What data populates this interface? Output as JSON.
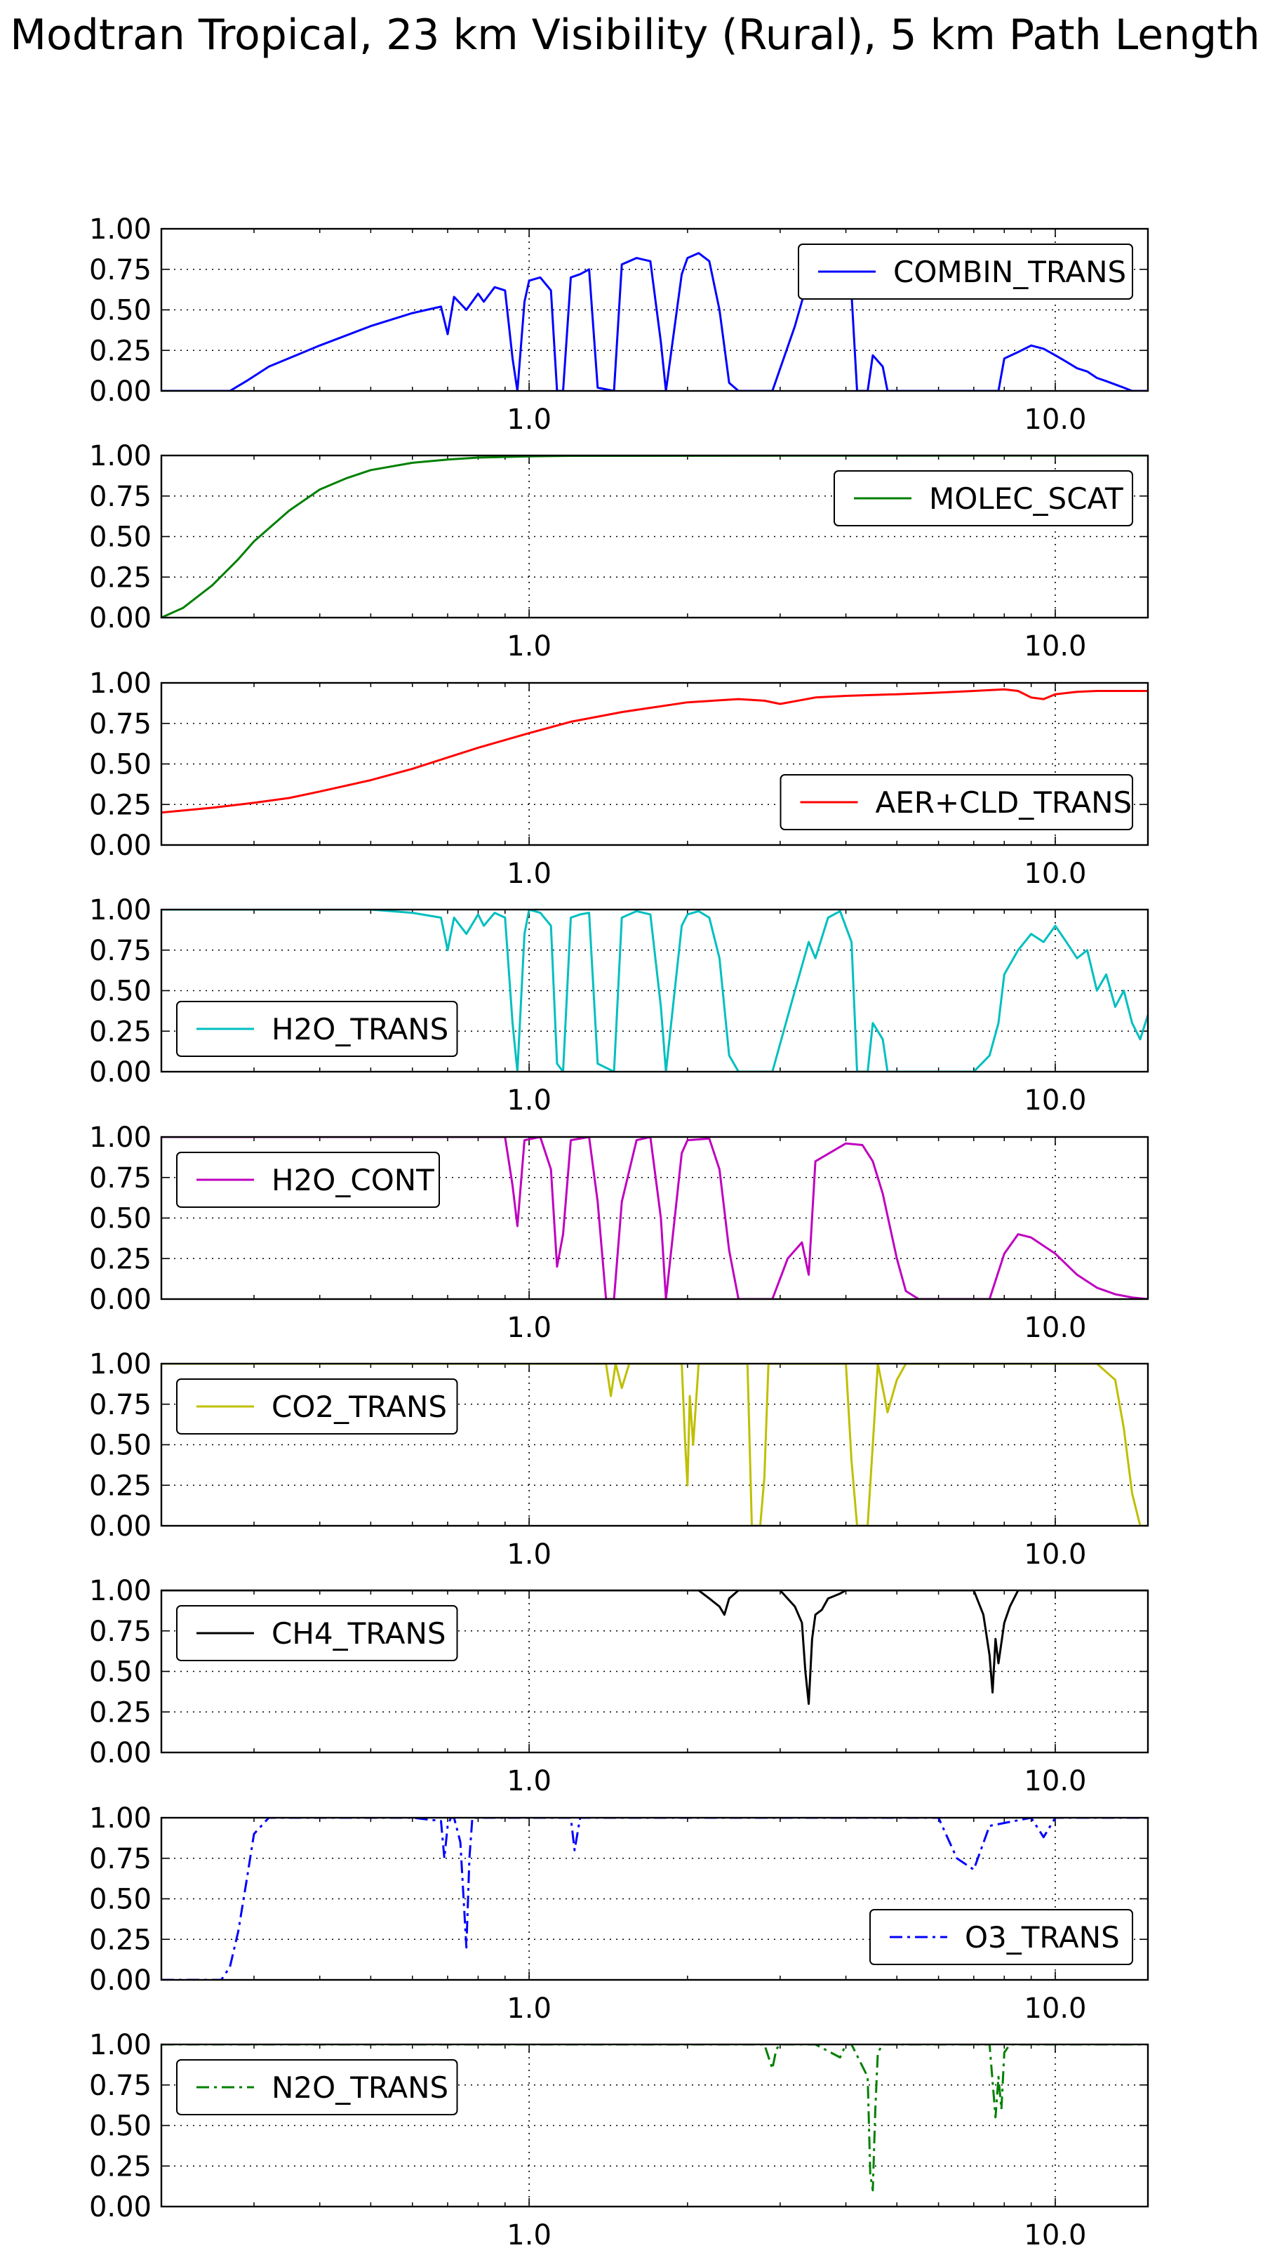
{
  "figure": {
    "title": "Modtran Tropical, 23 km Visibility (Rural), 5 km Path Length"
  },
  "chart_data": [
    {
      "type": "line",
      "xscale": "log",
      "xlim": [
        0.2,
        15.0
      ],
      "ylim": [
        0,
        1
      ],
      "grid": true,
      "xticks": [
        1.0,
        10.0
      ],
      "xtick_labels": [
        "1.0",
        "10.0"
      ],
      "yticks": [
        0,
        0.25,
        0.5,
        0.75,
        1.0
      ],
      "ytick_labels": [
        "0.00",
        "0.25",
        "0.50",
        "0.75",
        "1.00"
      ],
      "legend_loc": "upper right",
      "series": [
        {
          "name": "COMBIN_TRANS",
          "color": "#0000ff",
          "linestyle": "solid",
          "x": [
            0.2,
            0.27,
            0.29,
            0.32,
            0.4,
            0.5,
            0.6,
            0.68,
            0.7,
            0.72,
            0.76,
            0.8,
            0.82,
            0.86,
            0.9,
            0.93,
            0.95,
            0.98,
            1.0,
            1.05,
            1.1,
            1.13,
            1.16,
            1.2,
            1.25,
            1.3,
            1.35,
            1.45,
            1.5,
            1.6,
            1.7,
            1.78,
            1.82,
            1.95,
            2.0,
            2.1,
            2.2,
            2.3,
            2.4,
            2.5,
            2.6,
            2.9,
            3.2,
            3.4,
            3.5,
            3.7,
            3.9,
            4.1,
            4.2,
            4.4,
            4.5,
            4.7,
            4.8,
            5.0,
            5.2,
            5.5,
            7.8,
            8.0,
            8.5,
            9.0,
            9.5,
            10.0,
            10.5,
            11.0,
            11.5,
            12.0,
            12.5,
            13.0,
            13.5,
            14.0,
            15.0
          ],
          "y": [
            0,
            0,
            0.06,
            0.15,
            0.28,
            0.4,
            0.48,
            0.52,
            0.35,
            0.58,
            0.5,
            0.6,
            0.55,
            0.64,
            0.62,
            0.2,
            0,
            0.55,
            0.68,
            0.7,
            0.62,
            0,
            0,
            0.7,
            0.72,
            0.75,
            0.02,
            0,
            0.78,
            0.82,
            0.8,
            0.3,
            0,
            0.72,
            0.82,
            0.85,
            0.8,
            0.5,
            0.05,
            0,
            0,
            0,
            0.4,
            0.7,
            0.6,
            0.78,
            0.82,
            0.6,
            0,
            0,
            0.22,
            0.15,
            0,
            0,
            0,
            0,
            0,
            0.2,
            0.24,
            0.28,
            0.26,
            0.22,
            0.18,
            0.14,
            0.12,
            0.08,
            0.06,
            0.04,
            0.02,
            0,
            0
          ]
        }
      ]
    },
    {
      "type": "line",
      "xscale": "log",
      "xlim": [
        0.2,
        15.0
      ],
      "ylim": [
        0,
        1
      ],
      "grid": true,
      "xticks": [
        1.0,
        10.0
      ],
      "xtick_labels": [
        "1.0",
        "10.0"
      ],
      "yticks": [
        0,
        0.25,
        0.5,
        0.75,
        1.0
      ],
      "ytick_labels": [
        "0.00",
        "0.25",
        "0.50",
        "0.75",
        "1.00"
      ],
      "legend_loc": "upper right",
      "series": [
        {
          "name": "MOLEC_SCAT",
          "color": "#008000",
          "linestyle": "solid",
          "x": [
            0.2,
            0.22,
            0.25,
            0.28,
            0.3,
            0.35,
            0.4,
            0.45,
            0.5,
            0.6,
            0.7,
            0.8,
            1.0,
            1.2,
            15.0
          ],
          "y": [
            0.0,
            0.06,
            0.2,
            0.36,
            0.47,
            0.66,
            0.79,
            0.86,
            0.91,
            0.955,
            0.975,
            0.987,
            0.995,
            0.998,
            1.0
          ]
        }
      ]
    },
    {
      "type": "line",
      "xscale": "log",
      "xlim": [
        0.2,
        15.0
      ],
      "ylim": [
        0,
        1
      ],
      "grid": true,
      "xticks": [
        1.0,
        10.0
      ],
      "xtick_labels": [
        "1.0",
        "10.0"
      ],
      "yticks": [
        0,
        0.25,
        0.5,
        0.75,
        1.0
      ],
      "ytick_labels": [
        "0.00",
        "0.25",
        "0.50",
        "0.75",
        "1.00"
      ],
      "legend_loc": "lower right",
      "series": [
        {
          "name": "AER+CLD_TRANS",
          "color": "#ff0000",
          "linestyle": "solid",
          "x": [
            0.2,
            0.25,
            0.3,
            0.35,
            0.4,
            0.5,
            0.6,
            0.7,
            0.8,
            1.0,
            1.2,
            1.5,
            2.0,
            2.5,
            2.8,
            3.0,
            3.5,
            4.0,
            5.0,
            6.0,
            7.0,
            8.0,
            8.5,
            9.0,
            9.5,
            10.0,
            11.0,
            12.0,
            15.0
          ],
          "y": [
            0.2,
            0.23,
            0.26,
            0.29,
            0.33,
            0.4,
            0.47,
            0.54,
            0.6,
            0.69,
            0.76,
            0.82,
            0.88,
            0.9,
            0.89,
            0.87,
            0.91,
            0.92,
            0.93,
            0.94,
            0.95,
            0.96,
            0.95,
            0.91,
            0.9,
            0.93,
            0.945,
            0.95,
            0.95
          ]
        }
      ]
    },
    {
      "type": "line",
      "xscale": "log",
      "xlim": [
        0.2,
        15.0
      ],
      "ylim": [
        0,
        1
      ],
      "grid": true,
      "xticks": [
        1.0,
        10.0
      ],
      "xtick_labels": [
        "1.0",
        "10.0"
      ],
      "yticks": [
        0,
        0.25,
        0.5,
        0.75,
        1.0
      ],
      "ytick_labels": [
        "0.00",
        "0.25",
        "0.50",
        "0.75",
        "1.00"
      ],
      "legend_loc": "lower left",
      "series": [
        {
          "name": "H2O_TRANS",
          "color": "#00bfbf",
          "linestyle": "solid",
          "x": [
            0.2,
            0.5,
            0.6,
            0.68,
            0.7,
            0.72,
            0.76,
            0.8,
            0.82,
            0.86,
            0.9,
            0.93,
            0.95,
            0.98,
            1.0,
            1.05,
            1.1,
            1.13,
            1.16,
            1.2,
            1.25,
            1.3,
            1.35,
            1.45,
            1.5,
            1.6,
            1.7,
            1.78,
            1.82,
            1.95,
            2.0,
            2.1,
            2.2,
            2.3,
            2.4,
            2.5,
            2.6,
            2.9,
            3.2,
            3.4,
            3.5,
            3.7,
            3.9,
            4.1,
            4.2,
            4.4,
            4.5,
            4.7,
            4.8,
            5.0,
            5.2,
            5.5,
            6.0,
            7.0,
            7.5,
            7.8,
            8.0,
            8.5,
            9.0,
            9.5,
            10.0,
            10.5,
            11.0,
            11.5,
            12.0,
            12.5,
            13.0,
            13.5,
            14.0,
            14.5,
            15.0
          ],
          "y": [
            1.0,
            1.0,
            0.98,
            0.95,
            0.75,
            0.95,
            0.85,
            0.97,
            0.9,
            0.98,
            0.95,
            0.3,
            0.0,
            0.85,
            1.0,
            0.98,
            0.9,
            0.05,
            0.0,
            0.95,
            0.97,
            0.98,
            0.05,
            0.0,
            0.95,
            0.99,
            0.97,
            0.4,
            0.0,
            0.9,
            0.97,
            0.99,
            0.95,
            0.7,
            0.1,
            0.0,
            0.0,
            0.0,
            0.5,
            0.8,
            0.7,
            0.95,
            0.99,
            0.8,
            0.0,
            0.0,
            0.3,
            0.2,
            0.0,
            0.0,
            0.0,
            0.0,
            0.0,
            0.0,
            0.1,
            0.3,
            0.6,
            0.75,
            0.85,
            0.8,
            0.9,
            0.8,
            0.7,
            0.75,
            0.5,
            0.6,
            0.4,
            0.5,
            0.3,
            0.2,
            0.35
          ]
        }
      ]
    },
    {
      "type": "line",
      "xscale": "log",
      "xlim": [
        0.2,
        15.0
      ],
      "ylim": [
        0,
        1
      ],
      "grid": true,
      "xticks": [
        1.0,
        10.0
      ],
      "xtick_labels": [
        "1.0",
        "10.0"
      ],
      "yticks": [
        0,
        0.25,
        0.5,
        0.75,
        1.0
      ],
      "ytick_labels": [
        "0.00",
        "0.25",
        "0.50",
        "0.75",
        "1.00"
      ],
      "legend_loc": "upper left",
      "series": [
        {
          "name": "H2O_CONT",
          "color": "#bf00bf",
          "linestyle": "solid",
          "x": [
            0.2,
            0.9,
            0.93,
            0.95,
            0.98,
            1.05,
            1.1,
            1.13,
            1.16,
            1.2,
            1.3,
            1.35,
            1.4,
            1.45,
            1.5,
            1.6,
            1.7,
            1.78,
            1.82,
            1.95,
            2.0,
            2.2,
            2.3,
            2.4,
            2.5,
            2.6,
            2.9,
            3.1,
            3.3,
            3.4,
            3.5,
            4.0,
            4.3,
            4.5,
            4.7,
            5.0,
            5.2,
            5.5,
            7.5,
            8.0,
            8.5,
            9.0,
            10.0,
            11.0,
            12.0,
            13.0,
            14.0,
            15.0
          ],
          "y": [
            1.0,
            1.0,
            0.7,
            0.45,
            0.98,
            1.0,
            0.8,
            0.2,
            0.4,
            0.98,
            1.0,
            0.6,
            0.0,
            0.0,
            0.6,
            0.98,
            1.0,
            0.5,
            0.0,
            0.9,
            0.98,
            0.99,
            0.8,
            0.3,
            0.0,
            0.0,
            0.0,
            0.25,
            0.35,
            0.15,
            0.85,
            0.96,
            0.95,
            0.85,
            0.65,
            0.25,
            0.05,
            0.0,
            0.0,
            0.28,
            0.4,
            0.38,
            0.28,
            0.15,
            0.07,
            0.03,
            0.01,
            0.0
          ]
        }
      ]
    },
    {
      "type": "line",
      "xscale": "log",
      "xlim": [
        0.2,
        15.0
      ],
      "ylim": [
        0,
        1
      ],
      "grid": true,
      "xticks": [
        1.0,
        10.0
      ],
      "xtick_labels": [
        "1.0",
        "10.0"
      ],
      "yticks": [
        0,
        0.25,
        0.5,
        0.75,
        1.0
      ],
      "ytick_labels": [
        "0.00",
        "0.25",
        "0.50",
        "0.75",
        "1.00"
      ],
      "legend_loc": "upper left",
      "series": [
        {
          "name": "CO2_TRANS",
          "color": "#bfbf00",
          "linestyle": "solid",
          "x": [
            0.2,
            1.4,
            1.43,
            1.46,
            1.5,
            1.55,
            1.6,
            1.95,
            1.98,
            2.0,
            2.02,
            2.05,
            2.1,
            2.6,
            2.65,
            2.7,
            2.75,
            2.8,
            2.85,
            3.0,
            4.0,
            4.1,
            4.2,
            4.3,
            4.4,
            4.5,
            4.6,
            4.8,
            5.0,
            5.2,
            10.0,
            12.0,
            13.0,
            13.5,
            14.0,
            14.5,
            15.0
          ],
          "y": [
            1.0,
            1.0,
            0.8,
            1.0,
            0.85,
            1.0,
            1.0,
            1.0,
            0.5,
            0.25,
            0.8,
            0.5,
            1.0,
            1.0,
            0.0,
            0.0,
            0.0,
            0.3,
            1.0,
            1.0,
            1.0,
            0.4,
            0.0,
            0.0,
            0.0,
            0.5,
            1.0,
            0.7,
            0.9,
            1.0,
            1.0,
            1.0,
            0.9,
            0.6,
            0.2,
            0.0,
            0.0
          ]
        }
      ]
    },
    {
      "type": "line",
      "xscale": "log",
      "xlim": [
        0.2,
        15.0
      ],
      "ylim": [
        0,
        1
      ],
      "grid": true,
      "xticks": [
        1.0,
        10.0
      ],
      "xtick_labels": [
        "1.0",
        "10.0"
      ],
      "yticks": [
        0,
        0.25,
        0.5,
        0.75,
        1.0
      ],
      "ytick_labels": [
        "0.00",
        "0.25",
        "0.50",
        "0.75",
        "1.00"
      ],
      "legend_loc": "upper left",
      "series": [
        {
          "name": "CH4_TRANS",
          "color": "#000000",
          "linestyle": "solid",
          "x": [
            0.2,
            2.1,
            2.2,
            2.3,
            2.35,
            2.4,
            2.5,
            3.0,
            3.2,
            3.3,
            3.35,
            3.4,
            3.45,
            3.5,
            3.6,
            3.7,
            3.9,
            4.0,
            7.0,
            7.3,
            7.5,
            7.6,
            7.7,
            7.8,
            8.0,
            8.2,
            8.5,
            15.0
          ],
          "y": [
            1.0,
            1.0,
            0.95,
            0.9,
            0.85,
            0.95,
            1.0,
            1.0,
            0.9,
            0.8,
            0.5,
            0.3,
            0.7,
            0.85,
            0.88,
            0.95,
            0.98,
            1.0,
            1.0,
            0.85,
            0.6,
            0.37,
            0.7,
            0.55,
            0.8,
            0.9,
            1.0,
            1.0
          ]
        }
      ]
    },
    {
      "type": "line",
      "xscale": "log",
      "xlim": [
        0.2,
        15.0
      ],
      "ylim": [
        0,
        1
      ],
      "grid": true,
      "xticks": [
        1.0,
        10.0
      ],
      "xtick_labels": [
        "1.0",
        "10.0"
      ],
      "yticks": [
        0,
        0.25,
        0.5,
        0.75,
        1.0
      ],
      "ytick_labels": [
        "0.00",
        "0.25",
        "0.50",
        "0.75",
        "1.00"
      ],
      "legend_loc": "lower right",
      "series": [
        {
          "name": "O3_TRANS",
          "color": "#0000ff",
          "linestyle": "dashdot",
          "x": [
            0.2,
            0.26,
            0.27,
            0.28,
            0.29,
            0.3,
            0.32,
            0.6,
            0.68,
            0.69,
            0.7,
            0.71,
            0.72,
            0.74,
            0.76,
            0.77,
            0.78,
            0.8,
            1.2,
            1.22,
            1.25,
            1.3,
            6.0,
            6.5,
            7.0,
            7.5,
            9.0,
            9.5,
            10.0,
            15.0
          ],
          "y": [
            0.0,
            0.0,
            0.08,
            0.3,
            0.6,
            0.9,
            1.0,
            1.0,
            0.98,
            0.75,
            0.95,
            1.0,
            1.0,
            0.85,
            0.2,
            0.75,
            1.0,
            1.0,
            1.0,
            0.8,
            1.0,
            1.0,
            1.0,
            0.75,
            0.68,
            0.95,
            1.0,
            0.88,
            1.0,
            1.0
          ]
        }
      ]
    },
    {
      "type": "line",
      "xscale": "log",
      "xlim": [
        0.2,
        15.0
      ],
      "ylim": [
        0,
        1
      ],
      "grid": true,
      "xticks": [
        1.0,
        10.0
      ],
      "xtick_labels": [
        "1.0",
        "10.0"
      ],
      "yticks": [
        0,
        0.25,
        0.5,
        0.75,
        1.0
      ],
      "ytick_labels": [
        "0.00",
        "0.25",
        "0.50",
        "0.75",
        "1.00"
      ],
      "legend_loc": "upper left",
      "series": [
        {
          "name": "N2O_TRANS",
          "color": "#008000",
          "linestyle": "dashdot",
          "x": [
            0.2,
            2.8,
            2.9,
            2.95,
            3.0,
            3.5,
            3.9,
            4.0,
            4.1,
            4.4,
            4.45,
            4.5,
            4.55,
            4.6,
            4.7,
            4.8,
            7.5,
            7.7,
            7.8,
            7.9,
            8.0,
            8.2,
            15.0
          ],
          "y": [
            1.0,
            1.0,
            0.85,
            0.97,
            1.0,
            1.0,
            0.92,
            1.0,
            1.0,
            0.8,
            0.2,
            0.1,
            0.6,
            0.95,
            1.0,
            1.0,
            1.0,
            0.55,
            0.8,
            0.6,
            0.95,
            1.0,
            1.0
          ]
        }
      ]
    }
  ]
}
